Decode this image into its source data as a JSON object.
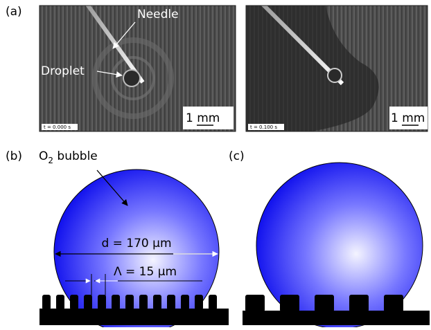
{
  "panel_a": {
    "label": "(a)",
    "left_image": {
      "needle_label": "Needle",
      "droplet_label": "Droplet",
      "timestamp": "t = 0.000 s",
      "scale_bar": "1 mm"
    },
    "right_image": {
      "timestamp": "t = 0.100 s",
      "scale_bar": "1 mm"
    }
  },
  "panel_b": {
    "label": "(b)",
    "bubble_label": {
      "text": "O",
      "subscript": "2",
      "suffix": " bubble"
    },
    "diameter": "d = 170 µm",
    "period": "Λ = 15 µm"
  },
  "panel_c": {
    "label": "(c)"
  }
}
